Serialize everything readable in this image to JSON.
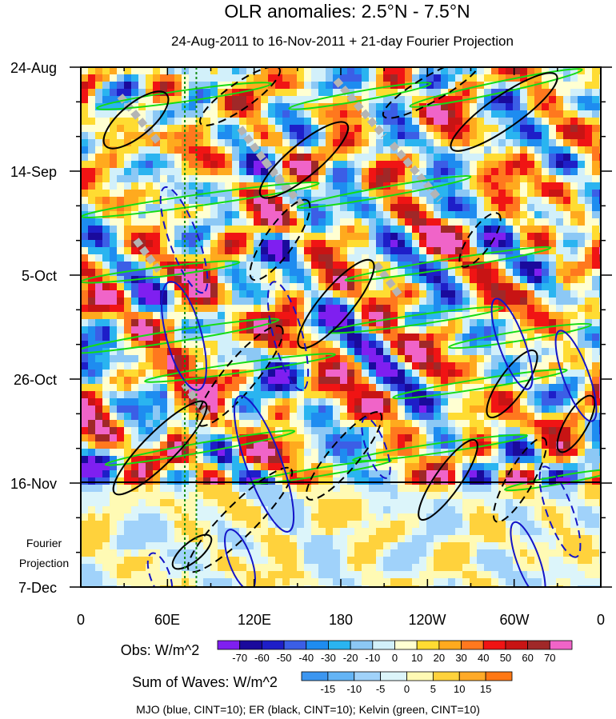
{
  "chart_data": {
    "type": "heatmap",
    "title": "OLR anomalies: 2.5°N - 7.5°N",
    "subtitle": "24-Aug-2011 to 16-Nov-2011 + 21-day Fourier Projection",
    "x_ticks": [
      "0",
      "60E",
      "120E",
      "180",
      "120W",
      "60W",
      "0"
    ],
    "x_range_deg_east": [
      0,
      360
    ],
    "y_ticks": [
      "24-Aug",
      "14-Sep",
      "5-Oct",
      "26-Oct",
      "16-Nov",
      "7-Dec"
    ],
    "y_range": [
      "2011-08-24",
      "2011-12-07"
    ],
    "observed_end": "2011-11-16",
    "projection_label": [
      "Fourier",
      "Projection"
    ],
    "reference_lines_lon_deg": [
      72,
      80
    ],
    "colorbars": [
      {
        "label": "Obs: W/m^2",
        "levels": [
          "-70",
          "-60",
          "-50",
          "-40",
          "-30",
          "-20",
          "-10",
          "0",
          "10",
          "20",
          "30",
          "40",
          "50",
          "60",
          "70"
        ],
        "colors": [
          "#7f1ff0",
          "#1a0a9c",
          "#1e1ec8",
          "#3b5ee6",
          "#1e8cf0",
          "#2ab4f0",
          "#8cc8f5",
          "#d2f0fa",
          "#ffffd2",
          "#ffdc32",
          "#ffaa1e",
          "#ff781e",
          "#f01414",
          "#c81414",
          "#a02828",
          "#f064c8"
        ]
      },
      {
        "label": "Sum of Waves: W/m^2",
        "levels": [
          "-15",
          "-10",
          "-5",
          "0",
          "5",
          "10",
          "15"
        ],
        "colors": [
          "#3c96f0",
          "#64b4f5",
          "#a0d2fa",
          "#dcf5fa",
          "#fffab4",
          "#ffd23c",
          "#ffaa28",
          "#ff7814"
        ]
      }
    ],
    "footer": "MJO (blue, CINT=10); ER (black, CINT=10); Kelvin (green, CINT=10)",
    "series": [
      {
        "key": "mjo",
        "color": "#1414c8"
      },
      {
        "key": "er",
        "color": "#000000"
      },
      {
        "key": "kelvin",
        "color": "#14dc14"
      }
    ]
  }
}
